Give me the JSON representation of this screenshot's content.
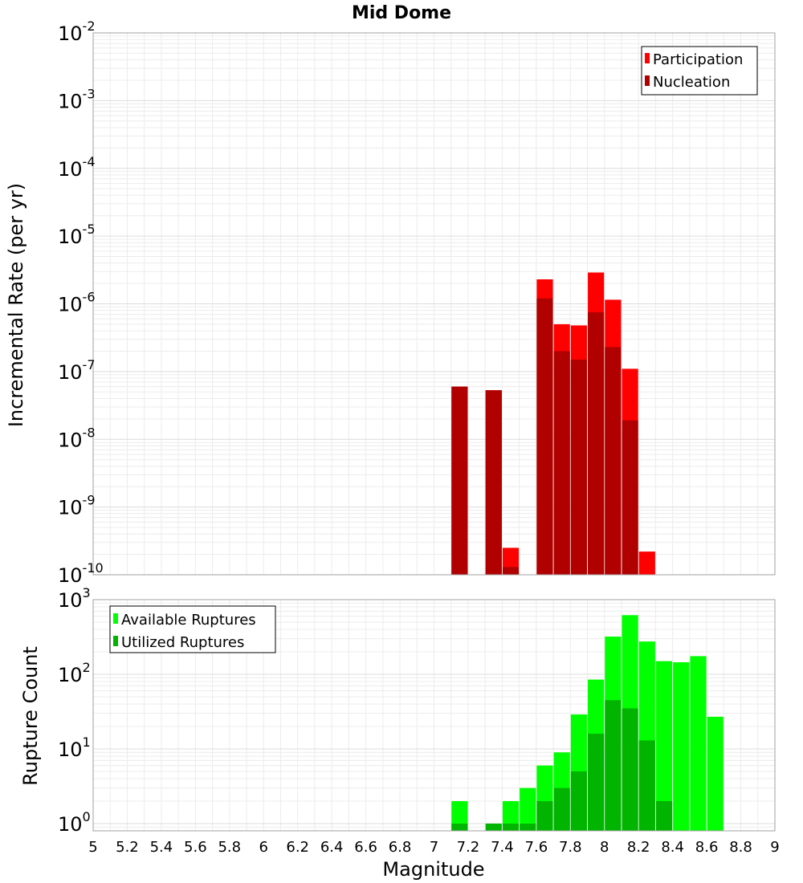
{
  "chart_data": [
    {
      "type": "bar",
      "title": "Mid Dome",
      "ylabel": "Incremental Rate (per yr)",
      "yscale": "log",
      "ylim": [
        1e-10,
        0.01
      ],
      "xlim": [
        5,
        9
      ],
      "grid": true,
      "legend_position": "top-right",
      "y_tick_labels": [
        {
          "base": "10",
          "exp": "-2"
        },
        {
          "base": "10",
          "exp": "-3"
        },
        {
          "base": "10",
          "exp": "-4"
        },
        {
          "base": "10",
          "exp": "-5"
        },
        {
          "base": "10",
          "exp": "-6"
        },
        {
          "base": "10",
          "exp": "-7"
        },
        {
          "base": "10",
          "exp": "-8"
        },
        {
          "base": "10",
          "exp": "-9"
        },
        {
          "base": "10",
          "exp": "-10"
        }
      ],
      "series": [
        {
          "name": "Participation",
          "color": "#ff0000",
          "x": [
            7.15,
            7.35,
            7.45,
            7.65,
            7.75,
            7.85,
            7.95,
            8.05,
            8.15,
            8.25
          ],
          "values": [
            6e-08,
            5.3e-08,
            2.5e-10,
            2.3e-06,
            5e-07,
            4.8e-07,
            2.9e-06,
            1.15e-06,
            1.1e-07,
            2.2e-10
          ]
        },
        {
          "name": "Nucleation",
          "color": "#b00000",
          "x": [
            7.15,
            7.35,
            7.45,
            7.65,
            7.75,
            7.85,
            7.95,
            8.05,
            8.15
          ],
          "values": [
            6e-08,
            5.3e-08,
            1.3e-10,
            1.2e-06,
            2e-07,
            1.5e-07,
            7.5e-07,
            2.3e-07,
            1.9e-08
          ]
        }
      ]
    },
    {
      "type": "bar",
      "title": "",
      "xlabel": "Magnitude",
      "ylabel": "Rupture Count",
      "yscale": "log",
      "ylim": [
        0.8,
        1000
      ],
      "xlim": [
        5,
        9
      ],
      "grid": true,
      "legend_position": "top-left",
      "x_tick_labels": [
        "5",
        "5.2",
        "5.4",
        "5.6",
        "5.8",
        "6",
        "6.2",
        "6.4",
        "6.6",
        "6.8",
        "7",
        "7.2",
        "7.4",
        "7.6",
        "7.8",
        "8",
        "8.2",
        "8.4",
        "8.6",
        "8.8",
        "9"
      ],
      "y_tick_labels": [
        {
          "base": "10",
          "exp": "3"
        },
        {
          "base": "10",
          "exp": "2"
        },
        {
          "base": "10",
          "exp": "1"
        },
        {
          "base": "10",
          "exp": "0"
        }
      ],
      "series": [
        {
          "name": "Available Ruptures",
          "color": "#00ff00",
          "x": [
            7.15,
            7.45,
            7.55,
            7.65,
            7.75,
            7.85,
            7.95,
            8.05,
            8.15,
            8.25,
            8.35,
            8.45,
            8.55,
            8.65
          ],
          "values": [
            2,
            2,
            3,
            6,
            9,
            29,
            85,
            320,
            620,
            275,
            150,
            145,
            175,
            27
          ]
        },
        {
          "name": "Utilized Ruptures",
          "color": "#00b400",
          "x": [
            7.15,
            7.35,
            7.45,
            7.55,
            7.65,
            7.75,
            7.85,
            7.95,
            8.05,
            8.15,
            8.25,
            8.35
          ],
          "values": [
            1,
            1,
            1,
            1,
            2,
            3,
            5,
            16,
            45,
            35,
            13,
            2
          ]
        }
      ]
    }
  ]
}
